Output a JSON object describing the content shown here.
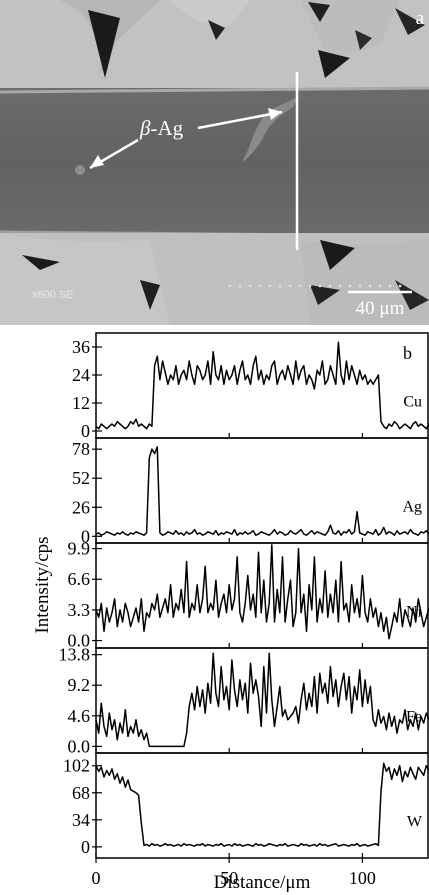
{
  "micrograph": {
    "panel_label": "a",
    "phase_label": "β-Ag",
    "phase_prefix": "β",
    "phase_suffix": "-Ag",
    "instrument_text": "x600 SE",
    "scale_bar_label": "40 μm"
  },
  "chart_data": {
    "type": "line",
    "panel_label": "b",
    "xlabel": "Distance/μm",
    "ylabel": "Intensity/cps",
    "xlim": [
      0,
      125
    ],
    "x_ticks": [
      0,
      50,
      100
    ],
    "panels": [
      {
        "element": "Cu",
        "ylim": [
          -3,
          42
        ],
        "y_ticks": [
          "0",
          "12",
          "24",
          "36"
        ],
        "y_tick_values": [
          0,
          12,
          24,
          36
        ],
        "x_start": 0,
        "x_step": 1,
        "values": [
          2,
          1,
          3,
          2,
          1,
          2,
          3,
          2,
          4,
          3,
          2,
          1,
          2,
          4,
          3,
          5,
          2,
          3,
          2,
          1,
          3,
          2,
          28,
          32,
          22,
          30,
          25,
          20,
          24,
          22,
          28,
          20,
          24,
          26,
          22,
          30,
          24,
          20,
          28,
          26,
          22,
          24,
          30,
          20,
          34,
          24,
          22,
          28,
          20,
          26,
          22,
          24,
          28,
          20,
          26,
          30,
          22,
          24,
          20,
          28,
          32,
          22,
          26,
          20,
          24,
          22,
          28,
          30,
          20,
          24,
          26,
          22,
          28,
          24,
          20,
          30,
          22,
          26,
          28,
          20,
          24,
          22,
          18,
          26,
          24,
          30,
          20,
          22,
          28,
          24,
          20,
          38,
          24,
          20,
          30,
          22,
          28,
          24,
          20,
          26,
          22,
          24,
          20,
          22,
          20,
          22,
          24,
          4,
          2,
          1,
          3,
          2,
          4,
          3,
          1,
          2,
          3,
          2,
          1,
          3,
          4,
          2,
          3,
          2,
          1,
          3,
          2,
          3
        ]
      },
      {
        "element": "Ag",
        "ylim": [
          -6,
          88
        ],
        "y_ticks": [
          "0",
          "26",
          "52",
          "78"
        ],
        "y_tick_values": [
          0,
          26,
          52,
          78
        ],
        "x_start": 0,
        "x_step": 1,
        "values": [
          2,
          3,
          1,
          2,
          4,
          3,
          2,
          1,
          3,
          2,
          4,
          2,
          1,
          3,
          2,
          4,
          3,
          2,
          1,
          3,
          70,
          78,
          74,
          80,
          3,
          1,
          2,
          4,
          3,
          2,
          5,
          2,
          3,
          1,
          4,
          2,
          3,
          6,
          2,
          3,
          1,
          2,
          4,
          3,
          2,
          5,
          1,
          3,
          2,
          4,
          3,
          2,
          6,
          1,
          3,
          2,
          4,
          2,
          3,
          5,
          1,
          2,
          4,
          3,
          2,
          1,
          3,
          6,
          2,
          4,
          3,
          1,
          2,
          5,
          3,
          2,
          4,
          6,
          2,
          1,
          3,
          5,
          2,
          4,
          3,
          2,
          1,
          4,
          10,
          3,
          2,
          5,
          1,
          4,
          3,
          6,
          2,
          4,
          22,
          3,
          2,
          1,
          4,
          3,
          2,
          6,
          1,
          3,
          8,
          2,
          4,
          3,
          1,
          5,
          2,
          3,
          4,
          2,
          6,
          3,
          2,
          1,
          4,
          3,
          5,
          2
        ]
      },
      {
        "element": "Ni",
        "ylim": [
          -0.8,
          10.5
        ],
        "y_ticks": [
          "0.0",
          "3.3",
          "6.6",
          "9.9"
        ],
        "y_tick_values": [
          0,
          3.3,
          6.6,
          9.9
        ],
        "x_start": 0,
        "x_step": 1,
        "values": [
          3.3,
          2.5,
          4.0,
          1.0,
          3.5,
          2.0,
          3.0,
          4.5,
          1.5,
          3.3,
          2.0,
          4.0,
          3.0,
          1.5,
          2.5,
          3.5,
          2.0,
          4.5,
          1.0,
          3.0,
          2.5,
          4.0,
          3.3,
          5.0,
          2.5,
          3.5,
          4.5,
          3.0,
          6.0,
          2.5,
          4.0,
          3.3,
          5.5,
          3.0,
          8.5,
          2.5,
          4.0,
          3.3,
          6.0,
          3.0,
          4.5,
          8.0,
          3.0,
          4.0,
          3.3,
          6.5,
          2.5,
          4.0,
          5.0,
          3.0,
          6.0,
          3.3,
          4.5,
          9.0,
          3.0,
          2.0,
          4.0,
          7.0,
          3.3,
          5.0,
          2.5,
          9.5,
          3.0,
          6.5,
          2.0,
          4.0,
          10.3,
          2.0,
          5.5,
          3.0,
          9.0,
          2.0,
          4.5,
          6.5,
          1.5,
          3.0,
          9.9,
          3.0,
          5.0,
          1.0,
          6.0,
          3.3,
          9.0,
          2.0,
          4.5,
          3.0,
          7.5,
          2.5,
          5.0,
          3.0,
          6.5,
          2.0,
          8.5,
          3.3,
          4.0,
          2.0,
          6.0,
          3.0,
          4.5,
          2.5,
          7.0,
          3.0,
          2.0,
          4.5,
          2.5,
          3.5,
          1.5,
          3.0,
          1.0,
          2.5,
          0.2,
          1.5,
          3.0,
          2.0,
          4.5,
          1.5,
          3.3,
          2.5,
          1.5,
          3.5,
          2.0,
          4.5,
          3.0,
          1.5,
          2.5,
          3.5
        ]
      },
      {
        "element": "Fe",
        "ylim": [
          -1,
          14.8
        ],
        "y_ticks": [
          "0.0",
          "4.6",
          "9.2",
          "13.8"
        ],
        "y_tick_values": [
          0,
          4.6,
          9.2,
          13.8
        ],
        "x_start": 0,
        "x_step": 1,
        "values": [
          4.0,
          2.0,
          6.5,
          3.0,
          1.5,
          5.0,
          2.5,
          4.0,
          1.0,
          3.5,
          2.0,
          5.5,
          1.5,
          3.0,
          2.0,
          4.0,
          1.5,
          2.5,
          1.0,
          2.0,
          0,
          0,
          0,
          0,
          0,
          0,
          0,
          0,
          0,
          0,
          0,
          0,
          0,
          0,
          2.0,
          6.0,
          8.0,
          5.5,
          9.0,
          6.0,
          8.5,
          5.0,
          9.5,
          6.5,
          14.0,
          8.0,
          6.0,
          12.0,
          7.0,
          9.0,
          5.5,
          13.0,
          8.5,
          6.0,
          10.0,
          7.0,
          9.5,
          5.0,
          12.5,
          8.0,
          10.0,
          7.5,
          3.0,
          12.0,
          5.0,
          14.0,
          7.0,
          3.0,
          6.0,
          9.0,
          4.5,
          5.5,
          4.0,
          4.5,
          5.0,
          6.0,
          3.5,
          7.0,
          9.5,
          5.5,
          8.0,
          6.0,
          10.5,
          5.0,
          11.0,
          8.0,
          9.5,
          6.5,
          12.0,
          7.5,
          10.0,
          6.0,
          9.0,
          11.0,
          7.0,
          10.5,
          5.0,
          9.0,
          7.0,
          11.5,
          6.0,
          10.0,
          6.5,
          9.0,
          4.0,
          3.0,
          5.5,
          3.5,
          4.5,
          2.5,
          5.0,
          3.0,
          4.5,
          2.0,
          4.0,
          3.5,
          5.5,
          2.5,
          4.0,
          3.0,
          5.0,
          2.5,
          4.5,
          3.5,
          5.0,
          4.0
        ]
      },
      {
        "element": "W",
        "ylim": [
          -14,
          118
        ],
        "y_ticks": [
          "0",
          "34",
          "68",
          "102"
        ],
        "y_tick_values": [
          0,
          34,
          68,
          102
        ],
        "x_start": 0,
        "x_step": 1,
        "values": [
          102,
          95,
          100,
          88,
          96,
          90,
          98,
          85,
          92,
          80,
          88,
          75,
          84,
          72,
          70,
          68,
          65,
          30,
          2,
          3,
          1,
          4,
          2,
          3,
          1,
          2,
          4,
          2,
          3,
          1,
          2,
          3,
          1,
          4,
          2,
          3,
          2,
          1,
          3,
          2,
          4,
          1,
          3,
          2,
          1,
          3,
          2,
          4,
          1,
          2,
          3,
          1,
          4,
          2,
          3,
          1,
          2,
          3,
          2,
          1,
          4,
          2,
          3,
          1,
          2,
          4,
          3,
          2,
          1,
          3,
          2,
          4,
          1,
          2,
          3,
          2,
          1,
          4,
          2,
          3,
          1,
          2,
          3,
          1,
          4,
          2,
          3,
          1,
          2,
          3,
          4,
          1,
          2,
          3,
          2,
          1,
          3,
          2,
          4,
          1,
          2,
          3,
          1,
          2,
          3,
          4,
          2,
          70,
          105,
          95,
          100,
          85,
          98,
          90,
          102,
          82,
          95,
          88,
          100,
          92,
          85,
          100,
          95,
          90,
          102,
          96
        ]
      }
    ]
  }
}
